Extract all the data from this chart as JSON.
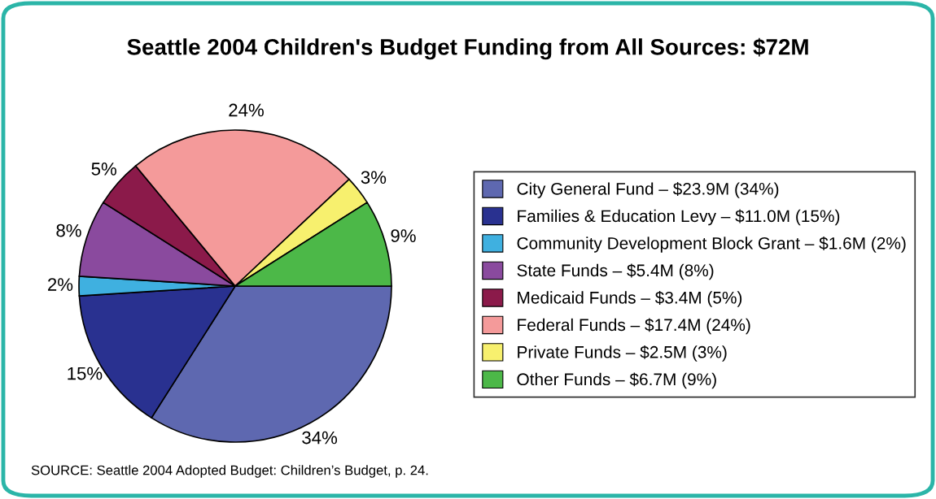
{
  "chart_data": {
    "type": "pie",
    "title": "Seattle 2004 Children's Budget Funding from All Sources: $72M",
    "categories": [
      "City General Fund – $23.9M (34%)",
      "Families & Education Levy – $11.0M (15%)",
      "Community Development Block Grant – $1.6M (2%)",
      "State Funds – $5.4M (8%)",
      "Medicaid Funds – $3.4M (5%)",
      "Federal Funds – $17.4M (24%)",
      "Private Funds – $2.5M (3%)",
      "Other Funds – $6.7M (9%)"
    ],
    "values": [
      34,
      15,
      2,
      8,
      5,
      24,
      3,
      9
    ],
    "value_labels": [
      "34%",
      "15%",
      "2%",
      "8%",
      "5%",
      "24%",
      "3%",
      "9%"
    ],
    "colors": [
      "#5e68b0",
      "#293190",
      "#3fb0e0",
      "#8a4a9e",
      "#8b1a4a",
      "#f49a9a",
      "#f7f06e",
      "#4cb848"
    ],
    "legend": "right",
    "annotations": [
      "SOURCE: Seattle 2004 Adopted Budget: Children’s Budget, p. 24."
    ]
  }
}
